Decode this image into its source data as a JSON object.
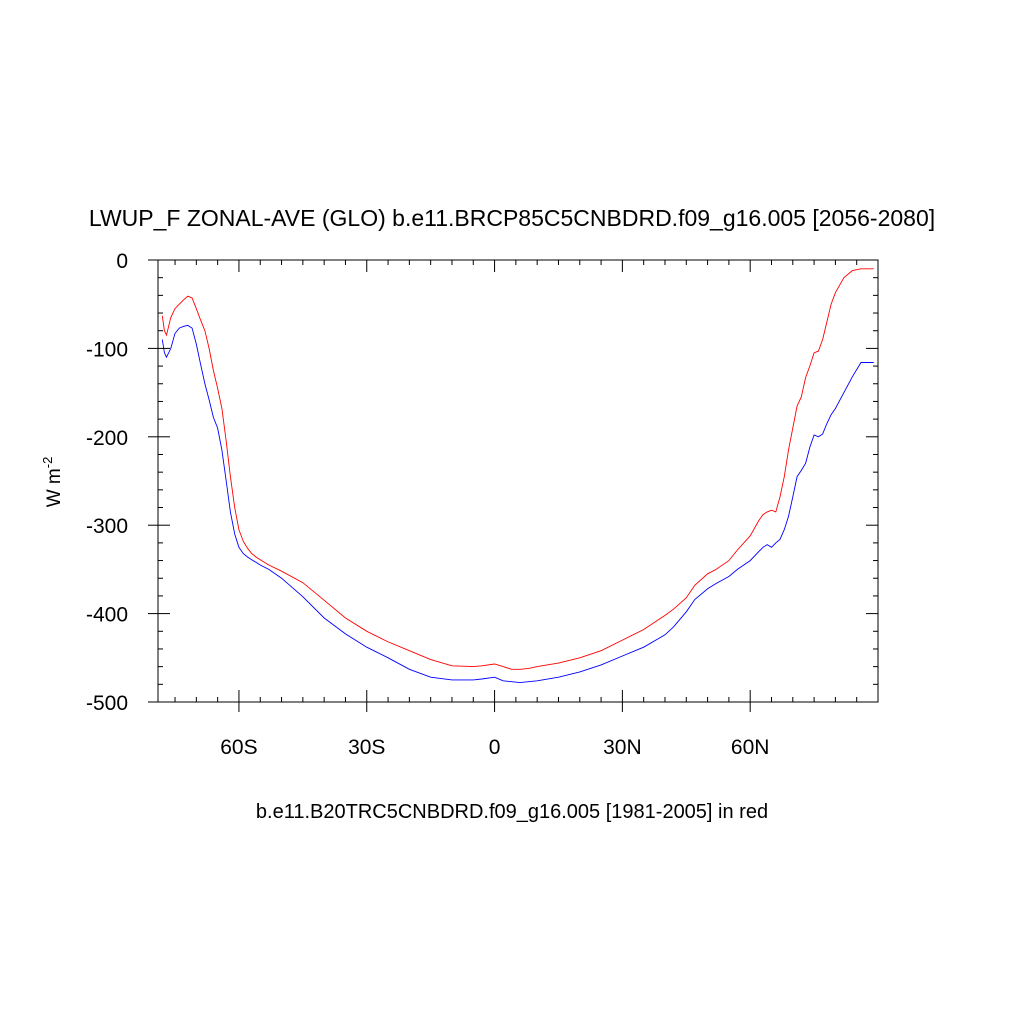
{
  "chart_data": {
    "type": "line",
    "title": "LWUP_F ZONAL-AVE (GLO) b.e11.BRCP85C5CNBDRD.f09_g16.005 [2056-2080]",
    "xlabel": "b.e11.B20TRC5CNBDRD.f09_g16.005 [1981-2005] in red",
    "ylabel_main": "W m",
    "ylabel_sup": "-2",
    "xlim": [
      -79,
      90
    ],
    "ylim": [
      -500,
      0
    ],
    "x_ticks": [
      {
        "value": -60,
        "label": "60S"
      },
      {
        "value": -30,
        "label": "30S"
      },
      {
        "value": 0,
        "label": "0"
      },
      {
        "value": 30,
        "label": "30N"
      },
      {
        "value": 60,
        "label": "60N"
      }
    ],
    "y_ticks": [
      {
        "value": 0,
        "label": "0"
      },
      {
        "value": -100,
        "label": "-100"
      },
      {
        "value": -200,
        "label": "-200"
      },
      {
        "value": -300,
        "label": "-300"
      },
      {
        "value": -400,
        "label": "-400"
      },
      {
        "value": -500,
        "label": "-500"
      }
    ],
    "grid": false,
    "series": [
      {
        "color": "#0000ff",
        "x": [
          -78,
          -77.5,
          -77,
          -76,
          -75,
          -74,
          -73,
          -72,
          -71,
          -70,
          -69,
          -68,
          -67,
          -66,
          -65,
          -64,
          -63,
          -62,
          -61,
          -60,
          -59,
          -58,
          -57,
          -56,
          -55,
          -53,
          -50,
          -45,
          -40,
          -35,
          -30,
          -25,
          -20,
          -15,
          -10,
          -5,
          -3,
          0,
          2,
          4,
          6,
          8,
          10,
          15,
          20,
          25,
          30,
          35,
          40,
          42,
          45,
          47,
          50,
          52,
          55,
          57,
          60,
          62,
          63,
          64,
          65,
          66,
          67,
          68,
          69,
          70,
          71,
          72,
          73,
          74,
          75,
          76,
          77,
          78,
          79,
          80,
          82,
          84,
          86,
          88,
          89
        ],
        "values": [
          -90,
          -105,
          -110,
          -100,
          -83,
          -77,
          -75,
          -74,
          -77,
          -95,
          -118,
          -140,
          -158,
          -178,
          -190,
          -215,
          -250,
          -285,
          -310,
          -325,
          -332,
          -336,
          -339,
          -342,
          -345,
          -350,
          -360,
          -381,
          -405,
          -423,
          -438,
          -450,
          -463,
          -472,
          -475,
          -475,
          -474,
          -472,
          -476,
          -477,
          -478,
          -477,
          -476,
          -472,
          -466,
          -458,
          -448,
          -438,
          -424,
          -415,
          -398,
          -384,
          -372,
          -366,
          -358,
          -350,
          -340,
          -330,
          -325,
          -322,
          -325,
          -320,
          -316,
          -305,
          -290,
          -268,
          -245,
          -238,
          -230,
          -212,
          -198,
          -200,
          -197,
          -185,
          -175,
          -168,
          -150,
          -132,
          -116,
          -116,
          -116
        ]
      },
      {
        "color": "#ff0000",
        "x": [
          -78,
          -77.5,
          -77,
          -76,
          -75,
          -74,
          -73,
          -72,
          -71,
          -70,
          -69,
          -68,
          -67,
          -66,
          -65,
          -64,
          -63,
          -62,
          -61,
          -60,
          -59,
          -58,
          -57,
          -56,
          -55,
          -53,
          -50,
          -45,
          -40,
          -35,
          -30,
          -25,
          -20,
          -15,
          -10,
          -5,
          -3,
          0,
          2,
          4,
          6,
          8,
          10,
          15,
          20,
          25,
          30,
          35,
          40,
          42,
          45,
          47,
          50,
          52,
          55,
          57,
          60,
          62,
          63,
          64,
          65,
          66,
          67,
          68,
          69,
          70,
          71,
          72,
          73,
          74,
          75,
          76,
          77,
          78,
          79,
          80,
          82,
          84,
          86,
          88,
          89
        ],
        "values": [
          -63,
          -80,
          -85,
          -65,
          -55,
          -50,
          -45,
          -41,
          -43,
          -55,
          -68,
          -80,
          -100,
          -125,
          -145,
          -168,
          -205,
          -245,
          -280,
          -305,
          -318,
          -326,
          -332,
          -336,
          -339,
          -345,
          -352,
          -365,
          -385,
          -405,
          -420,
          -432,
          -442,
          -452,
          -459,
          -460,
          -459,
          -457,
          -460,
          -463,
          -463,
          -462,
          -460,
          -456,
          -450,
          -442,
          -430,
          -418,
          -402,
          -395,
          -382,
          -368,
          -355,
          -350,
          -340,
          -328,
          -312,
          -295,
          -288,
          -285,
          -283,
          -285,
          -268,
          -245,
          -215,
          -190,
          -165,
          -155,
          -133,
          -120,
          -105,
          -103,
          -90,
          -70,
          -50,
          -37,
          -20,
          -12,
          -10,
          -10,
          -10
        ]
      }
    ]
  }
}
